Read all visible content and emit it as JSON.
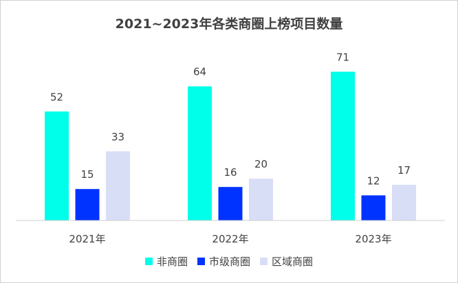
{
  "chart_data": {
    "type": "bar",
    "title": "2021~2023年各类商圈上榜项目数量",
    "xlabel": "",
    "ylabel": "",
    "categories": [
      "2021年",
      "2022年",
      "2023年"
    ],
    "series": [
      {
        "name": "非商圈",
        "values": [
          52,
          64,
          71
        ],
        "color": "#00FFEA"
      },
      {
        "name": "市级商圈",
        "values": [
          15,
          16,
          12
        ],
        "color": "#0033FF"
      },
      {
        "name": "区域商圈",
        "values": [
          33,
          20,
          17
        ],
        "color": "#D9DEF7"
      }
    ],
    "ylim": [
      0,
      78
    ],
    "grid": false,
    "legend": "bottom",
    "data_labels": true
  }
}
